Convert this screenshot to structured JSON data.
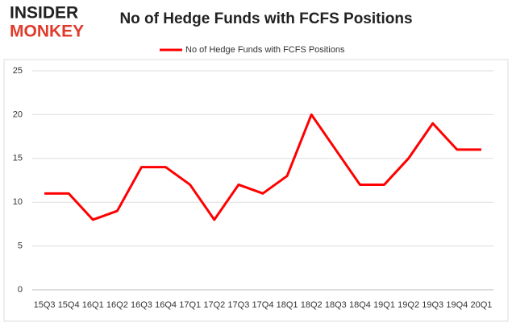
{
  "logo": [
    "INSIDER",
    "MONKEY"
  ],
  "chart_data": {
    "type": "line",
    "title": "No of Hedge Funds with FCFS Positions",
    "categories": [
      "15Q3",
      "15Q4",
      "16Q1",
      "16Q2",
      "16Q3",
      "16Q4",
      "17Q1",
      "17Q2",
      "17Q3",
      "17Q4",
      "18Q1",
      "18Q2",
      "18Q3",
      "18Q4",
      "19Q1",
      "19Q2",
      "19Q3",
      "19Q4",
      "20Q1"
    ],
    "series": [
      {
        "name": "No of Hedge Funds with FCFS Positions",
        "color": "#ff0000",
        "values": [
          11,
          11,
          8,
          9,
          14,
          14,
          12,
          8,
          12,
          11,
          13,
          20,
          16,
          12,
          12,
          15,
          19,
          16,
          16
        ]
      }
    ],
    "ylim": [
      0,
      25
    ],
    "yticks": [
      0,
      5,
      10,
      15,
      20,
      25
    ],
    "grid": true,
    "legend": "top"
  }
}
